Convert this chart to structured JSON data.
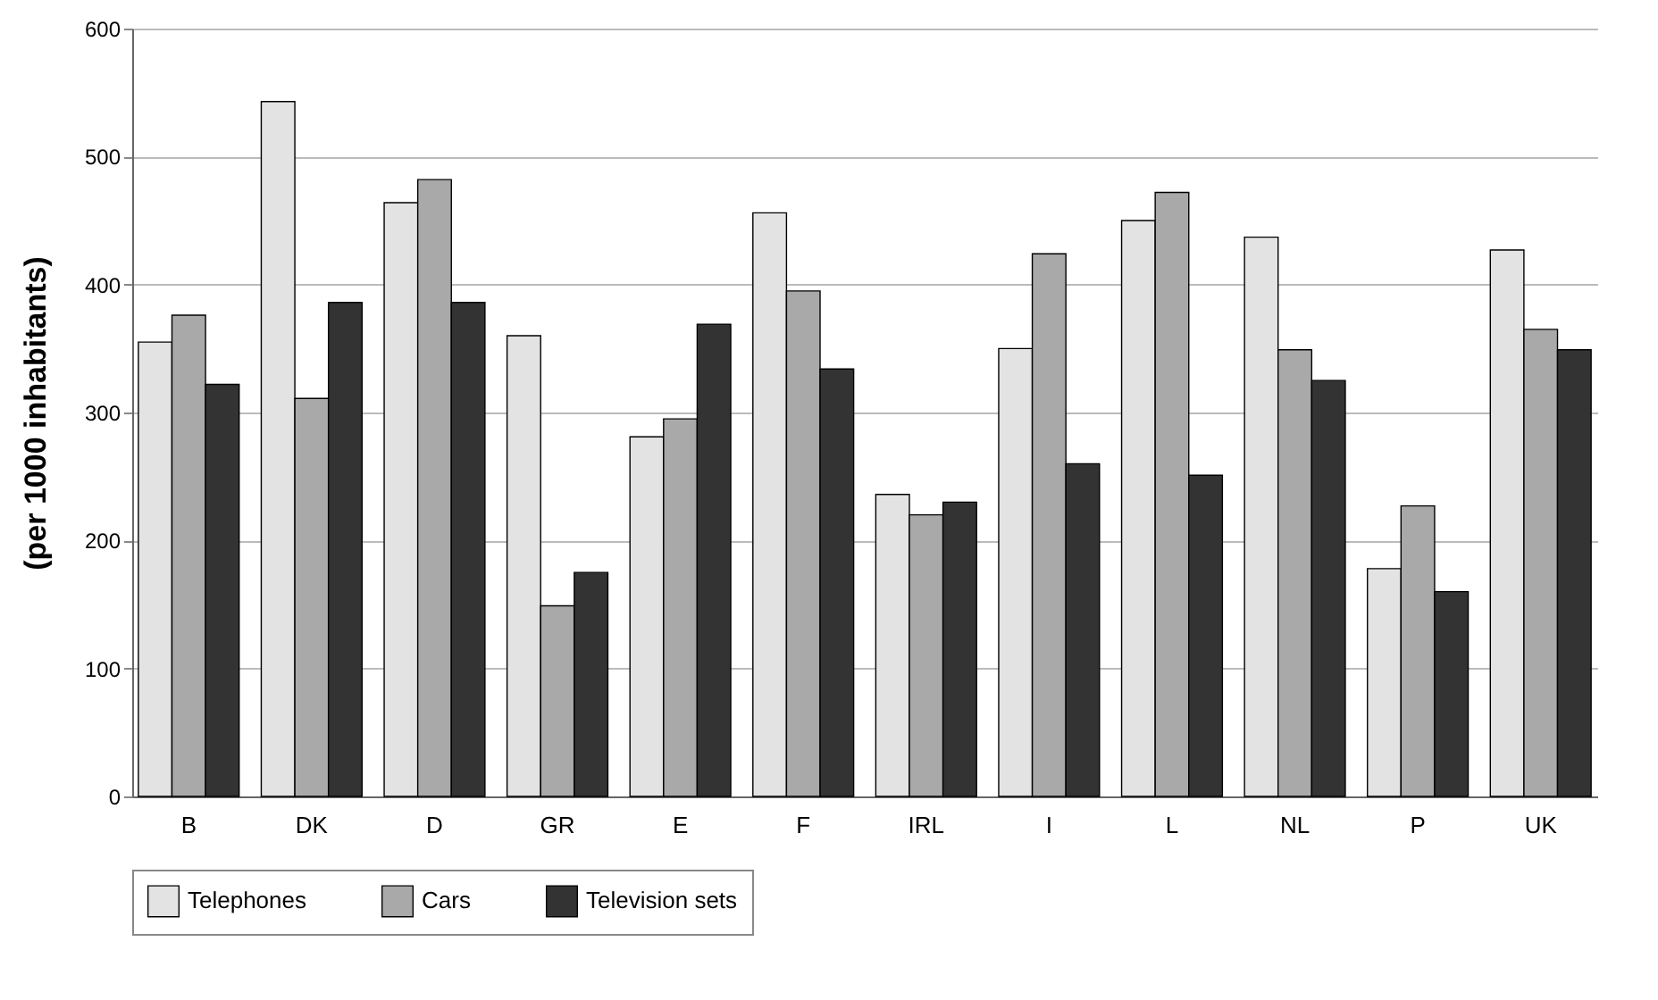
{
  "chart_data": {
    "type": "bar",
    "ylabel": "(per 1000 inhabitants)",
    "categories": [
      "B",
      "DK",
      "D",
      "GR",
      "E",
      "F",
      "IRL",
      "I",
      "L",
      "NL",
      "P",
      "UK"
    ],
    "series": [
      {
        "name": "Telephones",
        "color": "#e3e3e3",
        "values": [
          355,
          543,
          464,
          360,
          281,
          456,
          236,
          350,
          450,
          437,
          178,
          427
        ]
      },
      {
        "name": "Cars",
        "color": "#a9a9a9",
        "values": [
          376,
          311,
          482,
          149,
          295,
          395,
          220,
          424,
          472,
          349,
          227,
          365
        ]
      },
      {
        "name": "Television sets",
        "color": "#333333",
        "values": [
          322,
          386,
          386,
          175,
          369,
          334,
          230,
          260,
          251,
          325,
          160,
          349
        ]
      }
    ],
    "ylim": [
      0,
      600
    ],
    "yticks": [
      0,
      100,
      200,
      300,
      400,
      500,
      600
    ],
    "grid": "y",
    "legend": "bottom"
  }
}
